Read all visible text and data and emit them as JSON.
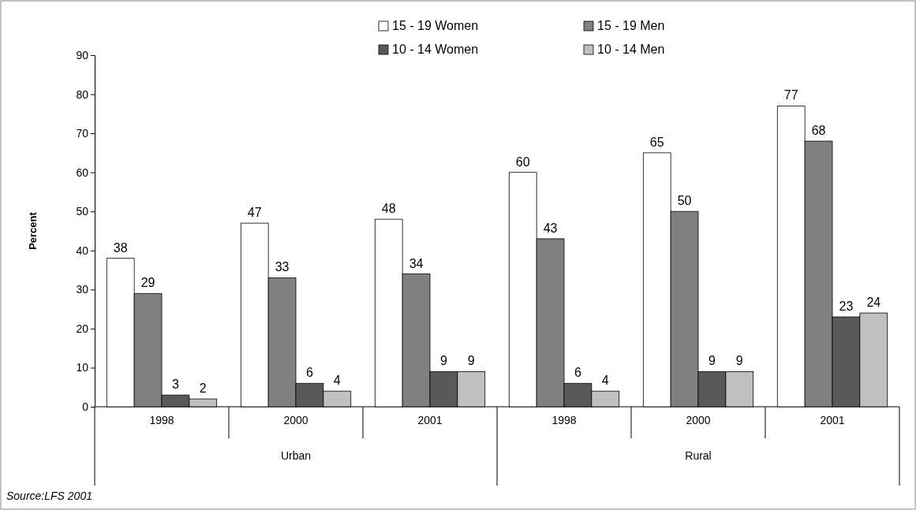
{
  "chart_data": {
    "type": "bar",
    "ylabel": "Percent",
    "categories": [
      "1998",
      "2000",
      "2001",
      "1998",
      "2000",
      "2001"
    ],
    "series": [
      {
        "name": "15 - 19 Women",
        "color": "#ffffff",
        "values": [
          38,
          47,
          48,
          60,
          65,
          77
        ]
      },
      {
        "name": "15 - 19 Men",
        "color": "#808080",
        "values": [
          29,
          33,
          34,
          43,
          50,
          68
        ]
      },
      {
        "name": "10 - 14 Women",
        "color": "#595959",
        "values": [
          3,
          6,
          9,
          6,
          9,
          23
        ]
      },
      {
        "name": "10 - 14 Men",
        "color": "#c0c0c0",
        "values": [
          2,
          4,
          9,
          4,
          9,
          24
        ]
      }
    ],
    "ylim": [
      0,
      90
    ],
    "yticks": [
      0,
      10,
      20,
      30,
      40,
      50,
      60,
      70,
      80,
      90
    ],
    "data_labels": true,
    "legend": "top",
    "annotations": [
      "Urban",
      "Rural",
      "Source:LFS 2001"
    ]
  }
}
